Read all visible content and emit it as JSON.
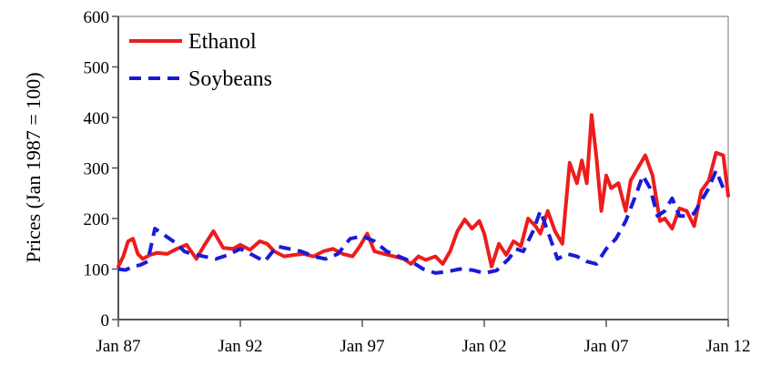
{
  "chart_data": {
    "type": "line",
    "title": "",
    "xlabel": "",
    "ylabel": "Prices (Jan 1987 = 100)",
    "xlim": [
      1987,
      2012
    ],
    "ylim": [
      0,
      600
    ],
    "y_ticks": [
      0,
      100,
      200,
      300,
      400,
      500,
      600
    ],
    "x_ticks": [
      {
        "value": 1987,
        "label": "Jan 87"
      },
      {
        "value": 1992,
        "label": "Jan 92"
      },
      {
        "value": 1997,
        "label": "Jan 97"
      },
      {
        "value": 2002,
        "label": "Jan 02"
      },
      {
        "value": 2007,
        "label": "Jan 07"
      },
      {
        "value": 2012,
        "label": "Jan 12"
      }
    ],
    "grid": false,
    "legend": "top-left",
    "series": [
      {
        "name": "Ethanol",
        "color": "#ee1c1c",
        "style": "solid",
        "x": [
          1987.0,
          1987.2,
          1987.4,
          1987.6,
          1987.8,
          1988.0,
          1988.3,
          1988.6,
          1989.0,
          1989.4,
          1989.8,
          1990.2,
          1990.5,
          1990.9,
          1991.3,
          1991.7,
          1992.0,
          1992.4,
          1992.8,
          1993.1,
          1993.4,
          1993.8,
          1994.2,
          1994.6,
          1995.0,
          1995.4,
          1995.8,
          1996.2,
          1996.6,
          1996.9,
          1997.2,
          1997.5,
          1997.9,
          1998.3,
          1998.7,
          1999.0,
          1999.3,
          1999.6,
          2000.0,
          2000.3,
          2000.6,
          2000.9,
          2001.2,
          2001.5,
          2001.8,
          2002.0,
          2002.3,
          2002.6,
          2002.9,
          2003.2,
          2003.5,
          2003.8,
          2004.1,
          2004.3,
          2004.6,
          2004.9,
          2005.2,
          2005.5,
          2005.8,
          2006.0,
          2006.2,
          2006.4,
          2006.6,
          2006.8,
          2007.0,
          2007.2,
          2007.5,
          2007.8,
          2008.0,
          2008.3,
          2008.6,
          2008.9,
          2009.2,
          2009.4,
          2009.7,
          2010.0,
          2010.3,
          2010.6,
          2010.9,
          2011.2,
          2011.5,
          2011.8,
          2012.0
        ],
        "y": [
          105,
          125,
          155,
          160,
          130,
          120,
          128,
          132,
          130,
          140,
          148,
          120,
          145,
          175,
          142,
          140,
          148,
          138,
          155,
          150,
          135,
          125,
          128,
          130,
          125,
          135,
          140,
          130,
          125,
          145,
          170,
          135,
          130,
          125,
          120,
          110,
          125,
          118,
          125,
          110,
          135,
          175,
          198,
          180,
          195,
          170,
          105,
          150,
          128,
          155,
          145,
          200,
          185,
          170,
          215,
          175,
          150,
          310,
          270,
          315,
          270,
          405,
          320,
          215,
          285,
          260,
          270,
          215,
          275,
          300,
          325,
          285,
          195,
          200,
          180,
          220,
          215,
          185,
          255,
          275,
          330,
          325,
          245
        ]
      },
      {
        "name": "Soybeans",
        "color": "#1a1ad6",
        "style": "dashed",
        "x": [
          1987.0,
          1987.3,
          1987.6,
          1987.9,
          1988.2,
          1988.5,
          1988.8,
          1989.1,
          1989.4,
          1989.7,
          1990.0,
          1990.5,
          1991.0,
          1991.5,
          1992.0,
          1992.5,
          1993.0,
          1993.5,
          1994.0,
          1994.5,
          1995.0,
          1995.5,
          1996.0,
          1996.5,
          1997.0,
          1997.5,
          1998.0,
          1998.5,
          1999.0,
          1999.5,
          2000.0,
          2000.5,
          2001.0,
          2001.5,
          2002.0,
          2002.5,
          2003.0,
          2003.3,
          2003.6,
          2004.0,
          2004.3,
          2004.6,
          2005.0,
          2005.4,
          2005.8,
          2006.2,
          2006.6,
          2007.0,
          2007.4,
          2007.8,
          2008.2,
          2008.5,
          2008.8,
          2009.1,
          2009.4,
          2009.7,
          2010.0,
          2010.3,
          2010.6,
          2010.9,
          2011.2,
          2011.5,
          2011.8,
          2012.0
        ],
        "y": [
          100,
          98,
          105,
          108,
          115,
          180,
          170,
          160,
          150,
          135,
          130,
          125,
          120,
          128,
          140,
          128,
          115,
          145,
          140,
          135,
          125,
          120,
          130,
          160,
          165,
          155,
          135,
          125,
          115,
          100,
          92,
          95,
          100,
          98,
          92,
          97,
          120,
          140,
          135,
          175,
          215,
          175,
          120,
          130,
          125,
          115,
          110,
          140,
          160,
          195,
          245,
          285,
          260,
          205,
          215,
          240,
          205,
          205,
          210,
          235,
          260,
          295,
          260,
          265
        ]
      }
    ]
  }
}
